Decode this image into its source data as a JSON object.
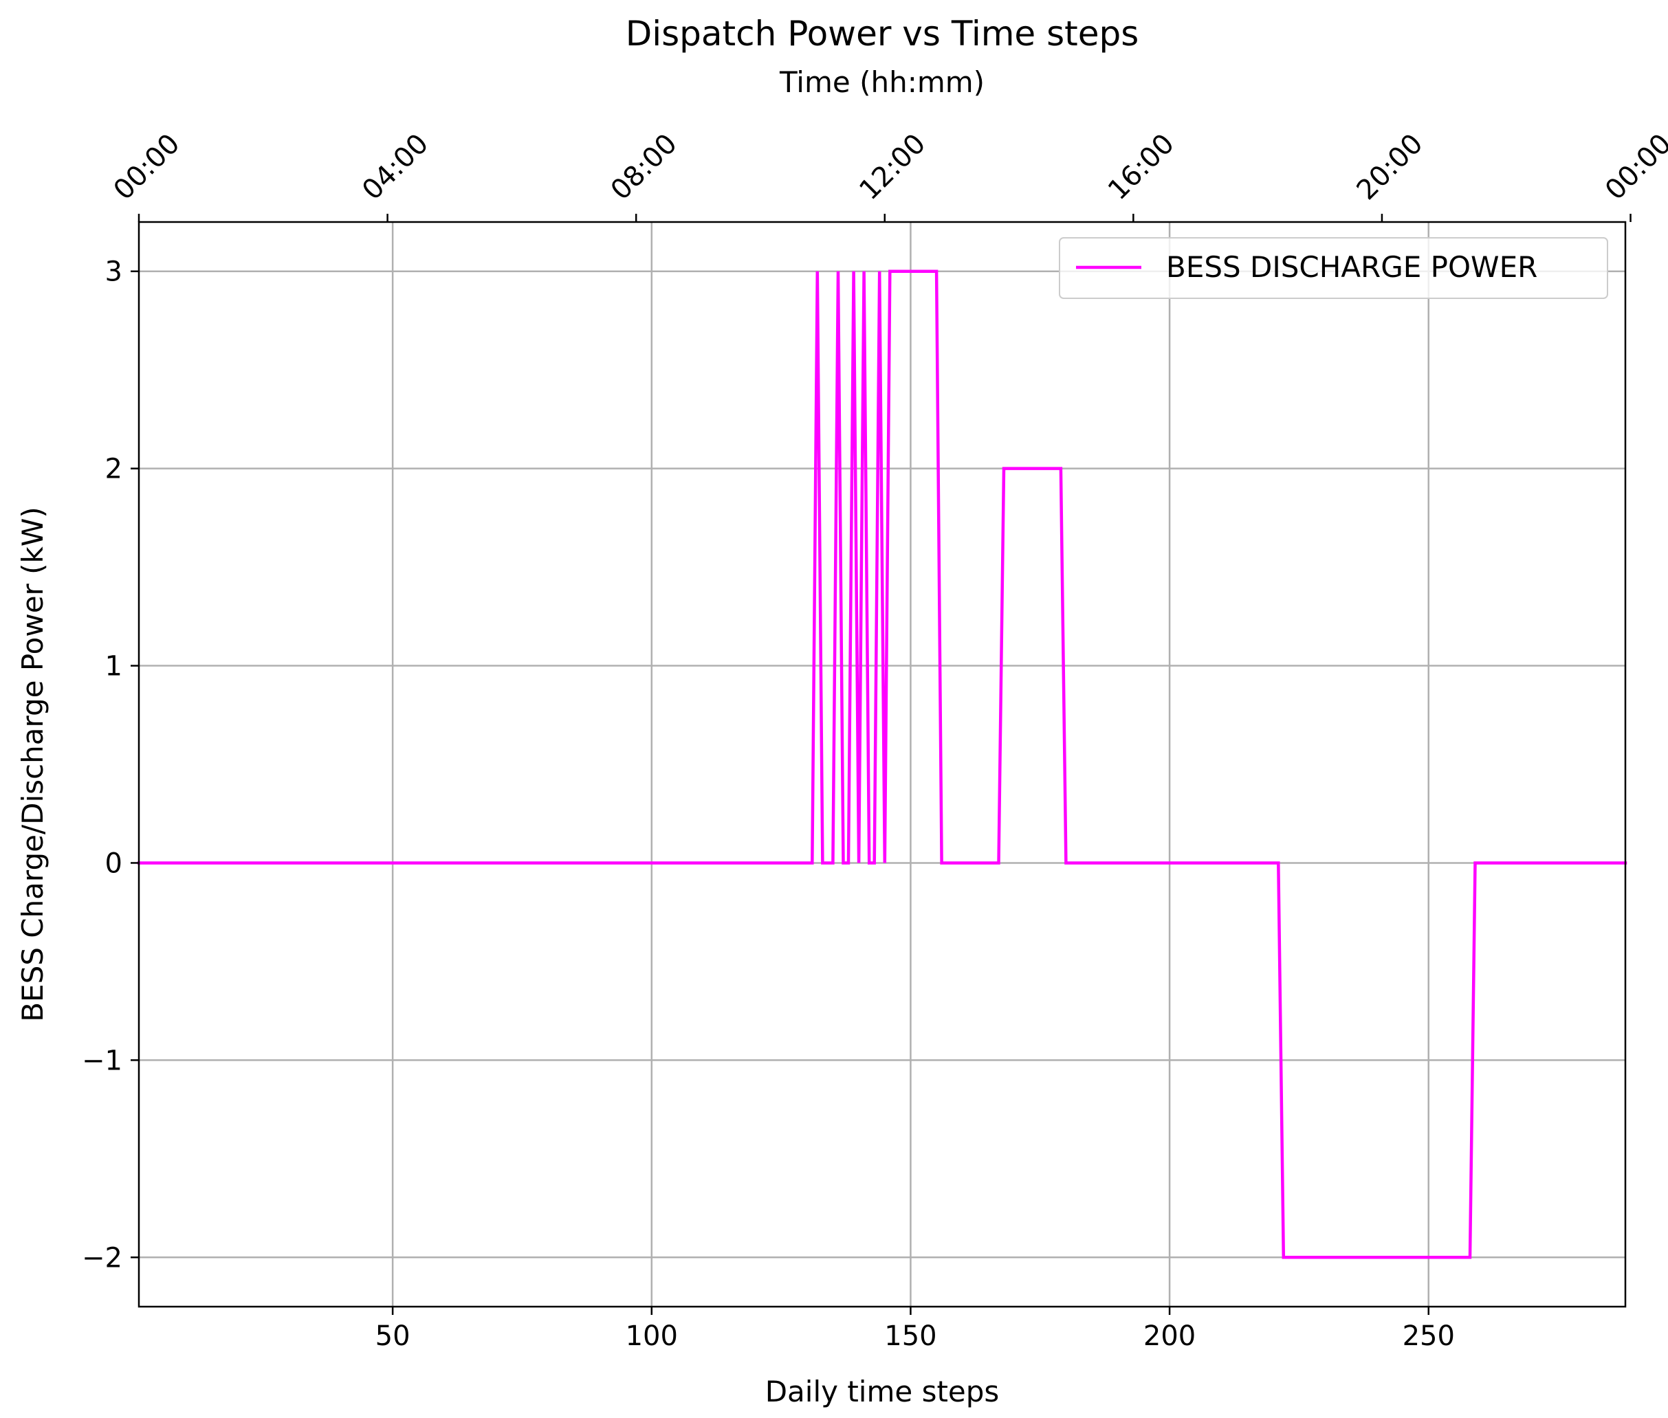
{
  "chart_data": {
    "type": "line",
    "title": "Dispatch Power vs Time steps",
    "xlabel": "Daily time steps",
    "ylabel": "BESS Charge/Discharge Power (kW)",
    "top_xlabel": "Time (hh:mm)",
    "xlim": [
      1,
      288
    ],
    "ylim": [
      -2.25,
      3.25
    ],
    "xticks": [
      50,
      100,
      150,
      200,
      250
    ],
    "xtick_labels": [
      "50",
      "100",
      "150",
      "200",
      "250"
    ],
    "yticks": [
      -2,
      -1,
      0,
      1,
      2,
      3
    ],
    "ytick_labels": [
      "−2",
      "−1",
      "0",
      "1",
      "2",
      "3"
    ],
    "top_ticks": [
      1,
      49,
      97,
      145,
      193,
      241,
      289
    ],
    "top_tick_labels": [
      "00:00",
      "04:00",
      "08:00",
      "12:00",
      "16:00",
      "20:00",
      "00:00"
    ],
    "grid": true,
    "legend_position": "top-right",
    "series": [
      {
        "name": "BESS DISCHARGE POWER",
        "color": "#ff00ff",
        "x": [
          1,
          131,
          132,
          133,
          135,
          136,
          137,
          138,
          139,
          140,
          141,
          142,
          143,
          144,
          145,
          146,
          155,
          156,
          167,
          168,
          179,
          180,
          221,
          222,
          258,
          259,
          288
        ],
        "y": [
          0,
          0,
          3,
          0,
          0,
          3,
          0,
          0,
          3,
          0,
          3,
          0,
          0,
          3,
          0,
          3,
          3,
          0,
          0,
          2,
          2,
          0,
          0,
          -2,
          -2,
          0,
          0
        ]
      }
    ]
  }
}
